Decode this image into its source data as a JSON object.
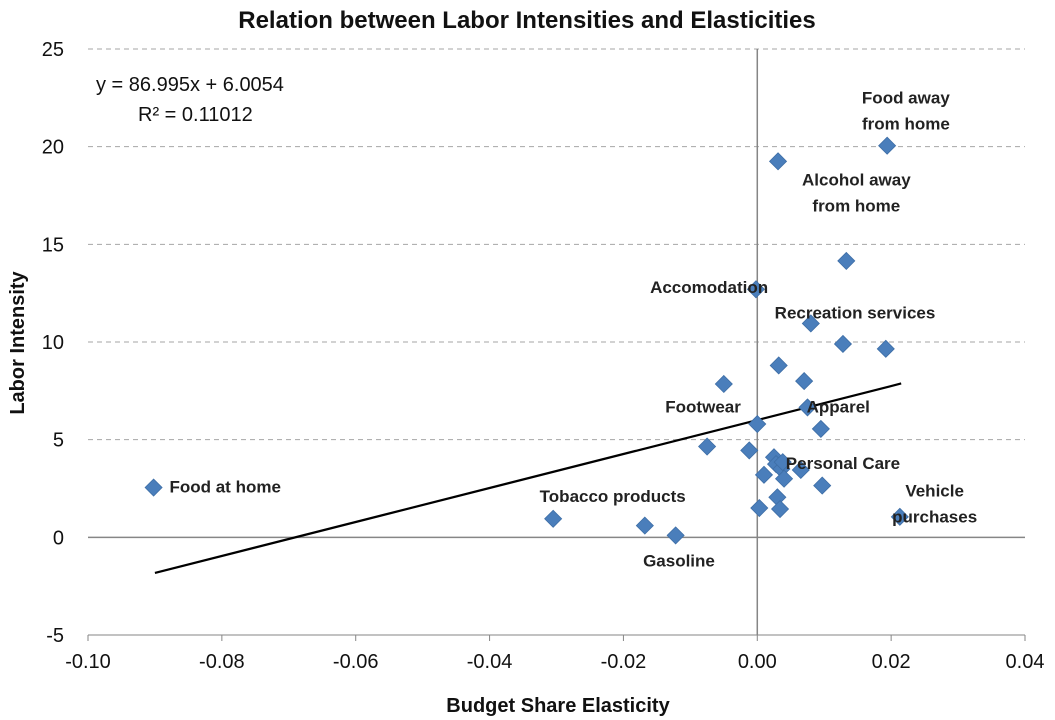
{
  "chart_data": {
    "type": "scatter",
    "title": "Relation between Labor Intensities and Elasticities",
    "xlabel": "Budget Share Elasticity",
    "ylabel": "Labor Intensity",
    "xlim": [
      -0.1,
      0.04
    ],
    "ylim": [
      -5,
      25
    ],
    "x_ticks": [
      -0.1,
      -0.08,
      -0.06,
      -0.04,
      -0.02,
      0.0,
      0.02,
      0.04
    ],
    "x_tick_labels": [
      "-0.10",
      "-0.08",
      "-0.06",
      "-0.04",
      "-0.02",
      "0.00",
      "0.02",
      "0.04"
    ],
    "y_ticks": [
      -5,
      0,
      5,
      10,
      15,
      20,
      25
    ],
    "y_tick_labels": [
      "-5",
      "0",
      "5",
      "10",
      "15",
      "20",
      "25"
    ],
    "grid": "horizontal dashed",
    "marker_color": "#4a7ebb",
    "trendline": {
      "slope": 86.995,
      "intercept": 6.0054,
      "x_range": [
        -0.09,
        0.0215
      ],
      "equation_text": "y = 86.995x + 6.0054",
      "r2_text": "R² = 0.11012",
      "color": "#000000"
    },
    "points": [
      {
        "x": -0.0902,
        "y": 2.55
      },
      {
        "x": -0.0305,
        "y": 0.95
      },
      {
        "x": -0.0168,
        "y": 0.6
      },
      {
        "x": -0.0122,
        "y": 0.1
      },
      {
        "x": -0.0075,
        "y": 4.65
      },
      {
        "x": -0.005,
        "y": 7.85
      },
      {
        "x": -0.0012,
        "y": 4.45
      },
      {
        "x": -0.0002,
        "y": 12.7
      },
      {
        "x": 0.0,
        "y": 5.8
      },
      {
        "x": 0.0003,
        "y": 1.5
      },
      {
        "x": 0.001,
        "y": 3.2
      },
      {
        "x": 0.0025,
        "y": 4.1
      },
      {
        "x": 0.0028,
        "y": 3.75
      },
      {
        "x": 0.003,
        "y": 2.05
      },
      {
        "x": 0.0031,
        "y": 19.25
      },
      {
        "x": 0.0032,
        "y": 8.8
      },
      {
        "x": 0.0034,
        "y": 1.45
      },
      {
        "x": 0.0036,
        "y": 3.5
      },
      {
        "x": 0.0038,
        "y": 3.85
      },
      {
        "x": 0.004,
        "y": 3.0
      },
      {
        "x": 0.0065,
        "y": 3.45
      },
      {
        "x": 0.007,
        "y": 8.0
      },
      {
        "x": 0.0075,
        "y": 6.65
      },
      {
        "x": 0.008,
        "y": 10.95
      },
      {
        "x": 0.0095,
        "y": 5.55
      },
      {
        "x": 0.0097,
        "y": 2.65
      },
      {
        "x": 0.0128,
        "y": 9.9
      },
      {
        "x": 0.0133,
        "y": 14.15
      },
      {
        "x": 0.0192,
        "y": 9.65
      },
      {
        "x": 0.0194,
        "y": 20.05
      },
      {
        "x": 0.0213,
        "y": 1.05
      }
    ],
    "annotations": [
      {
        "lines": [
          "Food away",
          "from home"
        ],
        "x": 0.0222,
        "y": 22.2
      },
      {
        "lines": [
          "Alcohol away",
          "from home"
        ],
        "x": 0.0148,
        "y": 18.0
      },
      {
        "lines": [
          "Accomodation"
        ],
        "x": -0.0072,
        "y": 12.5
      },
      {
        "lines": [
          "Recreation services"
        ],
        "x": 0.0146,
        "y": 11.2
      },
      {
        "lines": [
          "Footwear"
        ],
        "x": -0.0081,
        "y": 6.4
      },
      {
        "lines": [
          "Apparel"
        ],
        "x": 0.0121,
        "y": 6.4
      },
      {
        "lines": [
          "Personal Care"
        ],
        "x": 0.0128,
        "y": 3.5
      },
      {
        "lines": [
          "Food at home"
        ],
        "x": -0.0795,
        "y": 2.3
      },
      {
        "lines": [
          "Tobacco products"
        ],
        "x": -0.0216,
        "y": 1.8
      },
      {
        "lines": [
          "Vehicle",
          "purchases"
        ],
        "x": 0.0265,
        "y": 2.1
      },
      {
        "lines": [
          "Gasoline"
        ],
        "x": -0.0117,
        "y": -1.5
      }
    ]
  }
}
